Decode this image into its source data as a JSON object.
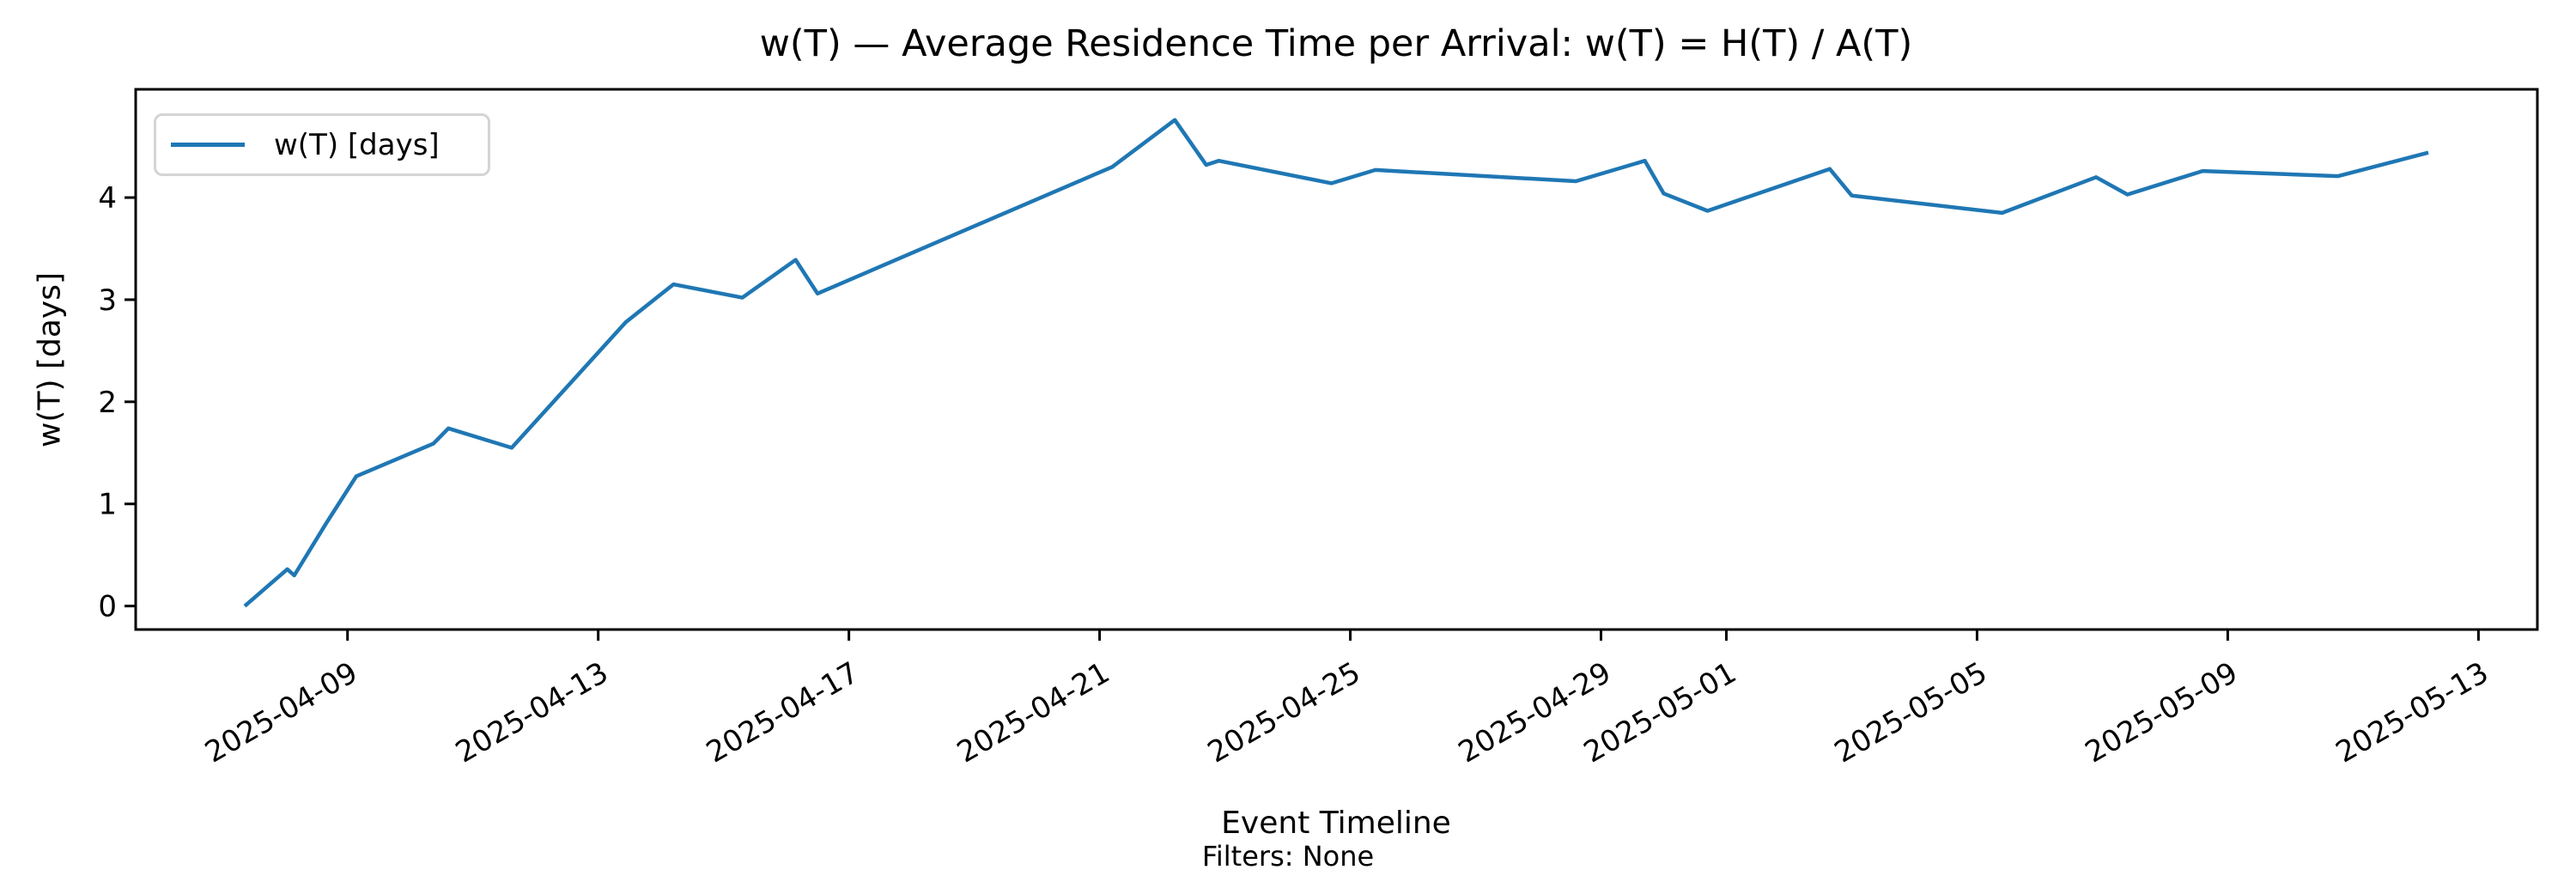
{
  "title": "w(T) — Average Residence Time per Arrival: w(T) = H(T) / A(T)",
  "axes": {
    "xlabel": "Event Timeline",
    "ylabel": "w(T) [days]",
    "footnote": "Filters: None"
  },
  "legend": {
    "label": "w(T) [days]",
    "color": "#1f77b4"
  },
  "chart_data": {
    "type": "line",
    "title": "w(T) — Average Residence Time per Arrival: w(T) = H(T) / A(T)",
    "xlabel": "Event Timeline",
    "ylabel": "w(T) [days]",
    "footnote": "Filters: None",
    "legend_entries": [
      "w(T) [days]"
    ],
    "legend_position": "upper left",
    "grid": false,
    "line_color": "#1f77b4",
    "text_color": "#000000",
    "x_unit": "days since 2025-04-07 00:00",
    "xlim": [
      -1.38,
      36.94
    ],
    "ylim": [
      -0.23,
      5.06
    ],
    "y_ticks": [
      0,
      1,
      2,
      3,
      4
    ],
    "x_ticks": [
      {
        "day": 2,
        "label": "2025-04-09"
      },
      {
        "day": 6,
        "label": "2025-04-13"
      },
      {
        "day": 10,
        "label": "2025-04-17"
      },
      {
        "day": 14,
        "label": "2025-04-21"
      },
      {
        "day": 18,
        "label": "2025-04-25"
      },
      {
        "day": 22,
        "label": "2025-04-29"
      },
      {
        "day": 24,
        "label": "2025-05-01"
      },
      {
        "day": 28,
        "label": "2025-05-05"
      },
      {
        "day": 32,
        "label": "2025-05-09"
      },
      {
        "day": 36,
        "label": "2025-05-13"
      }
    ],
    "series": [
      {
        "name": "w(T) [days]",
        "points": [
          [
            0.36,
            0.0
          ],
          [
            1.04,
            0.36
          ],
          [
            1.15,
            0.3
          ],
          [
            1.66,
            0.81
          ],
          [
            2.14,
            1.27
          ],
          [
            3.37,
            1.59
          ],
          [
            3.61,
            1.74
          ],
          [
            4.62,
            1.55
          ],
          [
            6.44,
            2.78
          ],
          [
            7.2,
            3.15
          ],
          [
            8.3,
            3.02
          ],
          [
            9.15,
            3.39
          ],
          [
            9.5,
            3.06
          ],
          [
            14.2,
            4.3
          ],
          [
            15.2,
            4.76
          ],
          [
            15.7,
            4.32
          ],
          [
            15.9,
            4.36
          ],
          [
            17.7,
            4.14
          ],
          [
            18.4,
            4.27
          ],
          [
            21.6,
            4.16
          ],
          [
            22.7,
            4.36
          ],
          [
            23.0,
            4.04
          ],
          [
            23.7,
            3.87
          ],
          [
            25.65,
            4.28
          ],
          [
            26.0,
            4.02
          ],
          [
            28.4,
            3.85
          ],
          [
            29.9,
            4.2
          ],
          [
            30.4,
            4.03
          ],
          [
            31.6,
            4.26
          ],
          [
            33.76,
            4.21
          ],
          [
            35.2,
            4.44
          ]
        ]
      }
    ]
  }
}
